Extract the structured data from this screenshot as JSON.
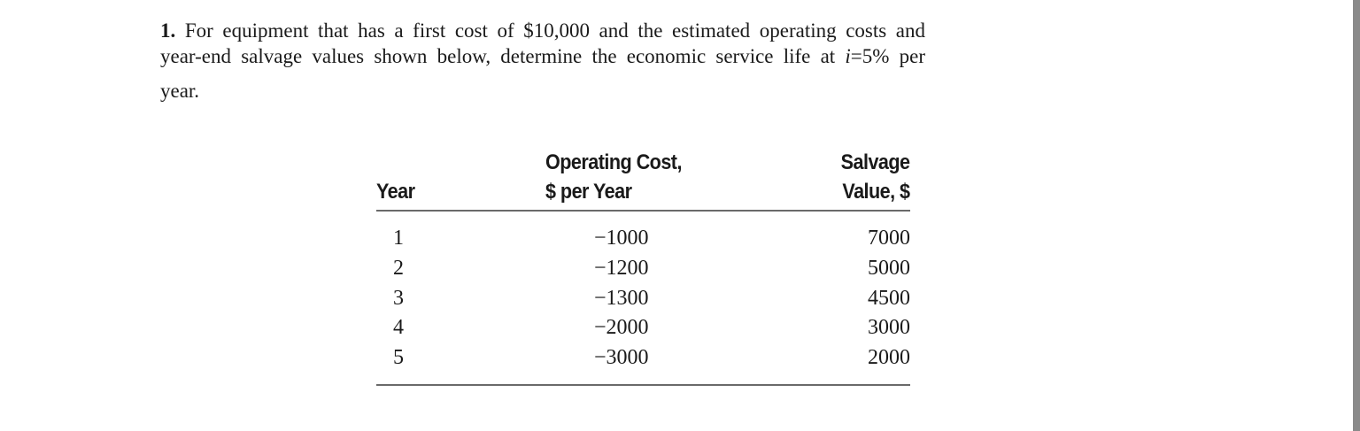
{
  "problem": {
    "number": "1.",
    "line1_rest": " For equipment that has a first cost of $10,000 and the estimated operating costs and",
    "line2_before": "year-end salvage values shown below, determine the economic service life at ",
    "line2_var": "i",
    "line2_after": "=5% per",
    "line3": "year."
  },
  "table": {
    "headers": {
      "year": "Year",
      "operating_line1": "Operating Cost,",
      "operating_line2": "$ per Year",
      "salvage_line1": "Salvage",
      "salvage_line2": "Value, $"
    },
    "years": [
      "1",
      "2",
      "3",
      "4",
      "5"
    ],
    "operating_costs": [
      "−1000",
      "−1200",
      "−1300",
      "−2000",
      "−3000"
    ],
    "salvage_values": [
      "7000",
      "5000",
      "4500",
      "3000",
      "2000"
    ]
  }
}
